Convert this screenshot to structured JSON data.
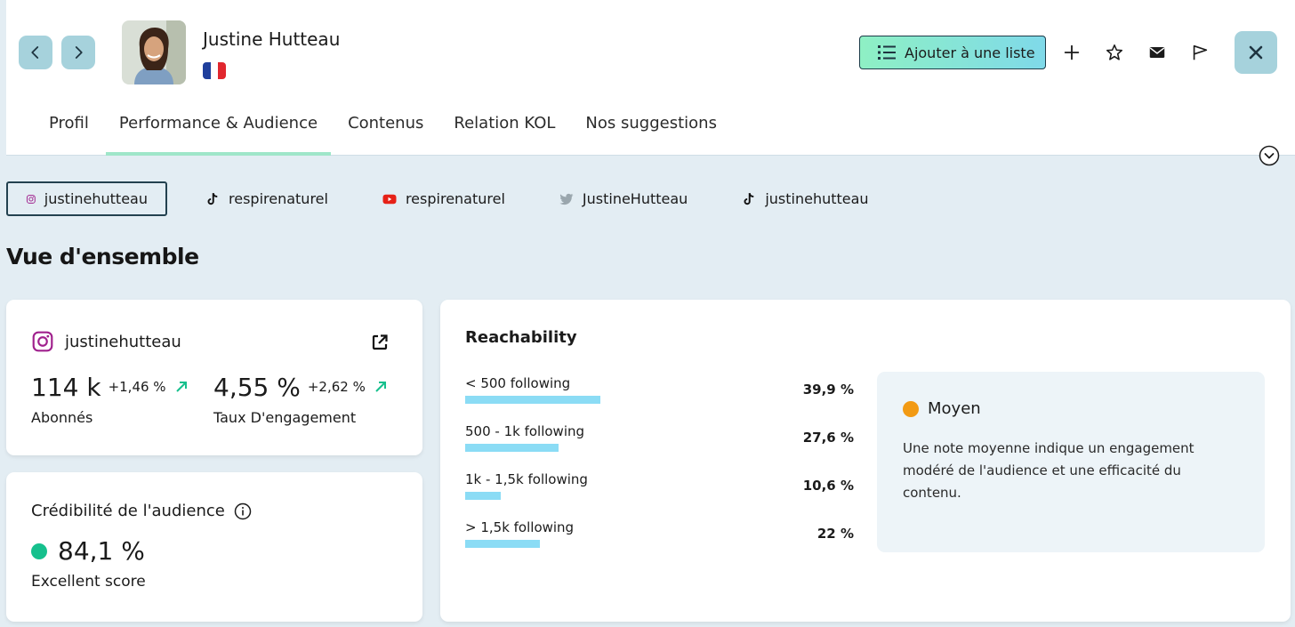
{
  "profile": {
    "name": "Justine Hutteau",
    "country_flag": "france-flag-icon"
  },
  "header": {
    "add_list_label": "Ajouter à une liste",
    "icons": [
      "chevron-left-icon",
      "chevron-right-icon",
      "list-icon",
      "plus-icon",
      "star-icon",
      "mail-icon",
      "flag-icon",
      "close-icon"
    ]
  },
  "tabs": [
    {
      "label": "Profil",
      "active": false
    },
    {
      "label": "Performance & Audience",
      "active": true
    },
    {
      "label": "Contenus",
      "active": false
    },
    {
      "label": "Relation KOL",
      "active": false
    },
    {
      "label": "Nos suggestions",
      "active": false
    }
  ],
  "socials": [
    {
      "label": "justinehutteau",
      "platform": "instagram",
      "active": true
    },
    {
      "label": "respirenaturel",
      "platform": "tiktok",
      "active": false
    },
    {
      "label": "respirenaturel",
      "platform": "youtube",
      "active": false
    },
    {
      "label": "JustineHutteau",
      "platform": "twitter",
      "active": false
    },
    {
      "label": "justinehutteau",
      "platform": "tiktok",
      "active": false
    }
  ],
  "overview": {
    "title": "Vue d'ensemble",
    "account": {
      "handle": "justinehutteau",
      "followers_value": "114 k",
      "followers_delta": "+1,46 %",
      "followers_label": "Abonnés",
      "engagement_value": "4,55 %",
      "engagement_delta": "+2,62 %",
      "engagement_label": "Taux D'engagement"
    },
    "credibility": {
      "title": "Crédibilité de l'audience",
      "value": "84,1 %",
      "label": "Excellent score"
    }
  },
  "reachability": {
    "title": "Reachability",
    "rows": [
      {
        "label": "< 500 following",
        "pct": "39,9 %",
        "value": 39.9
      },
      {
        "label": "500 - 1k following",
        "pct": "27,6 %",
        "value": 27.6
      },
      {
        "label": "1k - 1,5k following",
        "pct": "10,6 %",
        "value": 10.6
      },
      {
        "label": "> 1,5k following",
        "pct": "22 %",
        "value": 22
      }
    ],
    "note": {
      "level": "Moyen",
      "text": "Une note moyenne indique un engagement modéré de l'audience et une efficacité du contenu."
    }
  },
  "colors": {
    "accent_bar": "#8bdcf5",
    "tab_underline": "#9fe6c9",
    "score_green": "#16c08d",
    "score_orange": "#f29a14",
    "nav_button": "#a6d2dc"
  }
}
